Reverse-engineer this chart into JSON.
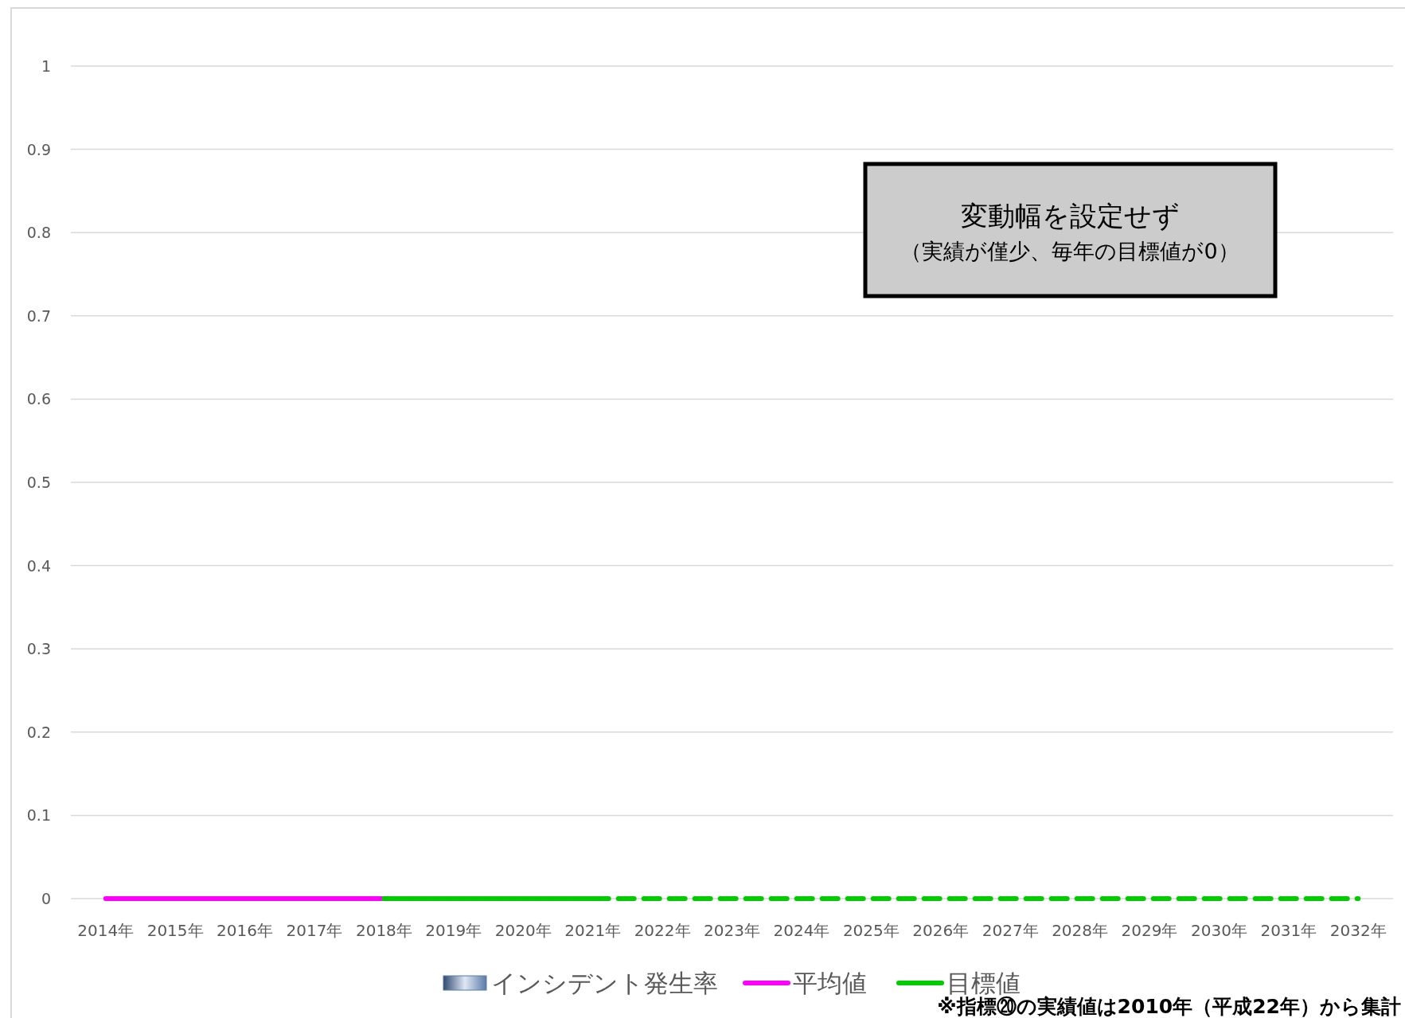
{
  "chart_data": {
    "type": "bar",
    "categories": [
      "2014年",
      "2015年",
      "2016年",
      "2017年",
      "2018年",
      "2019年",
      "2020年",
      "2021年",
      "2022年",
      "2023年",
      "2024年",
      "2025年",
      "2026年",
      "2027年",
      "2028年",
      "2029年",
      "2030年",
      "2031年",
      "2032年"
    ],
    "ylim": [
      0,
      1
    ],
    "yticks": [
      0,
      0.1,
      0.2,
      0.3,
      0.4,
      0.5,
      0.6,
      0.7,
      0.8,
      0.9,
      1
    ],
    "grid": "y",
    "legend": "bottom",
    "series": [
      {
        "name": "インシデント発生率",
        "color": "#5b7aa6",
        "values": [
          null,
          null,
          null,
          null,
          null,
          null,
          null,
          null,
          null,
          null,
          null,
          null,
          null,
          null,
          null,
          null,
          null,
          null,
          null
        ]
      },
      {
        "name": "平均値",
        "type": "line",
        "color": "#ff00ff",
        "values": [
          0,
          0,
          0,
          0,
          0,
          null,
          null,
          null,
          null,
          null,
          null,
          null,
          null,
          null,
          null,
          null,
          null,
          null,
          null
        ]
      },
      {
        "name": "目標値",
        "type": "line",
        "color": "#00cc00",
        "values": [
          null,
          null,
          null,
          null,
          0,
          0,
          0,
          0,
          null,
          null,
          null,
          null,
          null,
          null,
          null,
          null,
          null,
          null,
          null
        ]
      },
      {
        "type": "line",
        "color": "#00cc00",
        "line_style": "dashed",
        "values": [
          null,
          null,
          null,
          null,
          null,
          null,
          null,
          0,
          0,
          0,
          0,
          0,
          0,
          0,
          0,
          0,
          0,
          0,
          0
        ]
      }
    ],
    "annotations": [
      "変動幅を設定せず",
      "（実績が僅少、毎年の目標値が0）",
      "※指標⑳の実績値は2010年（平成22年）から集計"
    ]
  }
}
